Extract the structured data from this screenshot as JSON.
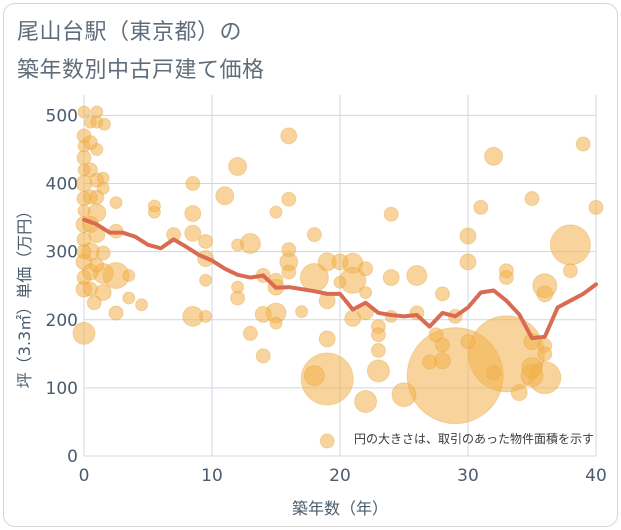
{
  "title": {
    "line1": "尾山台駅（東京都）の",
    "line2": "築年数別中古戸建て価格"
  },
  "colors": {
    "bubble": "#f2b04a",
    "bubble_stroke": "#e2a038",
    "line": "#d96b52",
    "grid": "#ccd9e3",
    "axis_text": "#4a5b6d"
  },
  "chart_data": {
    "type": "scatter",
    "title": "尾山台駅（東京都）の築年数別中古戸建て価格",
    "xlabel": "築年数（年）",
    "ylabel": "坪（3.3㎡）単価（万円）",
    "xlim": [
      0,
      40
    ],
    "ylim": [
      0,
      530
    ],
    "xticks": [
      0,
      10,
      20,
      30,
      40
    ],
    "yticks": [
      0,
      100,
      200,
      300,
      400,
      500
    ],
    "grid": true,
    "annotation": "円の大きさは、取引のあった物件面積を示す",
    "bubbles": [
      {
        "x": 0,
        "y": 505,
        "r": 6
      },
      {
        "x": 0,
        "y": 470,
        "r": 7
      },
      {
        "x": 0,
        "y": 455,
        "r": 6
      },
      {
        "x": 0,
        "y": 438,
        "r": 7
      },
      {
        "x": 0,
        "y": 420,
        "r": 6
      },
      {
        "x": 0,
        "y": 400,
        "r": 8
      },
      {
        "x": 0,
        "y": 378,
        "r": 7
      },
      {
        "x": 0,
        "y": 360,
        "r": 6
      },
      {
        "x": 0,
        "y": 340,
        "r": 8
      },
      {
        "x": 0,
        "y": 318,
        "r": 7
      },
      {
        "x": 0,
        "y": 300,
        "r": 7
      },
      {
        "x": 0,
        "y": 285,
        "r": 8
      },
      {
        "x": 0,
        "y": 262,
        "r": 7
      },
      {
        "x": 0,
        "y": 245,
        "r": 8
      },
      {
        "x": 0,
        "y": 180,
        "r": 11
      },
      {
        "x": 0.5,
        "y": 490,
        "r": 6
      },
      {
        "x": 0.5,
        "y": 460,
        "r": 7
      },
      {
        "x": 0.5,
        "y": 420,
        "r": 7
      },
      {
        "x": 0.5,
        "y": 380,
        "r": 7
      },
      {
        "x": 0.5,
        "y": 340,
        "r": 8
      },
      {
        "x": 0.5,
        "y": 300,
        "r": 9
      },
      {
        "x": 0.5,
        "y": 270,
        "r": 8
      },
      {
        "x": 0.5,
        "y": 245,
        "r": 7
      },
      {
        "x": 0.8,
        "y": 225,
        "r": 7
      },
      {
        "x": 1,
        "y": 505,
        "r": 6
      },
      {
        "x": 1,
        "y": 490,
        "r": 6
      },
      {
        "x": 1,
        "y": 450,
        "r": 6
      },
      {
        "x": 1,
        "y": 405,
        "r": 7
      },
      {
        "x": 1,
        "y": 380,
        "r": 7
      },
      {
        "x": 1,
        "y": 357,
        "r": 9
      },
      {
        "x": 1,
        "y": 325,
        "r": 8
      },
      {
        "x": 1,
        "y": 280,
        "r": 7
      },
      {
        "x": 1.5,
        "y": 268,
        "r": 10
      },
      {
        "x": 1.5,
        "y": 240,
        "r": 8
      },
      {
        "x": 1.5,
        "y": 298,
        "r": 7
      },
      {
        "x": 1.6,
        "y": 487,
        "r": 6
      },
      {
        "x": 1.5,
        "y": 408,
        "r": 6
      },
      {
        "x": 1.5,
        "y": 393,
        "r": 6
      },
      {
        "x": 2.5,
        "y": 372,
        "r": 6
      },
      {
        "x": 2.5,
        "y": 330,
        "r": 7
      },
      {
        "x": 2.5,
        "y": 265,
        "r": 13
      },
      {
        "x": 2.5,
        "y": 210,
        "r": 7
      },
      {
        "x": 3.5,
        "y": 232,
        "r": 6
      },
      {
        "x": 3.5,
        "y": 265,
        "r": 6
      },
      {
        "x": 4.5,
        "y": 222,
        "r": 6
      },
      {
        "x": 5.5,
        "y": 367,
        "r": 6
      },
      {
        "x": 5.5,
        "y": 358,
        "r": 6
      },
      {
        "x": 7,
        "y": 325,
        "r": 7
      },
      {
        "x": 8.5,
        "y": 400,
        "r": 7
      },
      {
        "x": 8.5,
        "y": 356,
        "r": 8
      },
      {
        "x": 8.5,
        "y": 327,
        "r": 8
      },
      {
        "x": 8.5,
        "y": 205,
        "r": 10
      },
      {
        "x": 9.5,
        "y": 315,
        "r": 7
      },
      {
        "x": 9.5,
        "y": 290,
        "r": 8
      },
      {
        "x": 9.5,
        "y": 258,
        "r": 6
      },
      {
        "x": 9.5,
        "y": 205,
        "r": 6
      },
      {
        "x": 11,
        "y": 382,
        "r": 9
      },
      {
        "x": 12,
        "y": 425,
        "r": 9
      },
      {
        "x": 12,
        "y": 310,
        "r": 6
      },
      {
        "x": 12,
        "y": 248,
        "r": 6
      },
      {
        "x": 12,
        "y": 232,
        "r": 7
      },
      {
        "x": 13,
        "y": 312,
        "r": 10
      },
      {
        "x": 13,
        "y": 180,
        "r": 7
      },
      {
        "x": 14,
        "y": 265,
        "r": 7
      },
      {
        "x": 14,
        "y": 208,
        "r": 8
      },
      {
        "x": 14,
        "y": 147,
        "r": 7
      },
      {
        "x": 15,
        "y": 358,
        "r": 6
      },
      {
        "x": 15,
        "y": 258,
        "r": 7
      },
      {
        "x": 15,
        "y": 248,
        "r": 8
      },
      {
        "x": 15,
        "y": 210,
        "r": 10
      },
      {
        "x": 15,
        "y": 195,
        "r": 6
      },
      {
        "x": 16,
        "y": 470,
        "r": 8
      },
      {
        "x": 16,
        "y": 377,
        "r": 7
      },
      {
        "x": 16,
        "y": 303,
        "r": 7
      },
      {
        "x": 16,
        "y": 285,
        "r": 9
      },
      {
        "x": 16,
        "y": 270,
        "r": 7
      },
      {
        "x": 17,
        "y": 212,
        "r": 6
      },
      {
        "x": 18,
        "y": 325,
        "r": 7
      },
      {
        "x": 18,
        "y": 262,
        "r": 14
      },
      {
        "x": 18,
        "y": 118,
        "r": 10
      },
      {
        "x": 19,
        "y": 285,
        "r": 9
      },
      {
        "x": 19,
        "y": 228,
        "r": 8
      },
      {
        "x": 19,
        "y": 172,
        "r": 8
      },
      {
        "x": 19,
        "y": 113,
        "r": 26
      },
      {
        "x": 19,
        "y": 22,
        "r": 7
      },
      {
        "x": 20,
        "y": 285,
        "r": 8
      },
      {
        "x": 20,
        "y": 255,
        "r": 6
      },
      {
        "x": 21,
        "y": 283,
        "r": 10
      },
      {
        "x": 21,
        "y": 258,
        "r": 13
      },
      {
        "x": 21,
        "y": 202,
        "r": 8
      },
      {
        "x": 22,
        "y": 275,
        "r": 7
      },
      {
        "x": 22,
        "y": 240,
        "r": 6
      },
      {
        "x": 22,
        "y": 212,
        "r": 8
      },
      {
        "x": 22,
        "y": 80,
        "r": 11
      },
      {
        "x": 23,
        "y": 190,
        "r": 7
      },
      {
        "x": 23,
        "y": 178,
        "r": 7
      },
      {
        "x": 23,
        "y": 155,
        "r": 7
      },
      {
        "x": 23,
        "y": 125,
        "r": 11
      },
      {
        "x": 24,
        "y": 355,
        "r": 7
      },
      {
        "x": 24,
        "y": 262,
        "r": 8
      },
      {
        "x": 24,
        "y": 205,
        "r": 6
      },
      {
        "x": 25,
        "y": 90,
        "r": 12
      },
      {
        "x": 26,
        "y": 265,
        "r": 10
      },
      {
        "x": 26,
        "y": 210,
        "r": 7
      },
      {
        "x": 27,
        "y": 138,
        "r": 7
      },
      {
        "x": 27.5,
        "y": 178,
        "r": 7
      },
      {
        "x": 28,
        "y": 238,
        "r": 7
      },
      {
        "x": 28,
        "y": 163,
        "r": 7
      },
      {
        "x": 28,
        "y": 140,
        "r": 8
      },
      {
        "x": 29,
        "y": 118,
        "r": 48
      },
      {
        "x": 29,
        "y": 205,
        "r": 7
      },
      {
        "x": 30,
        "y": 323,
        "r": 8
      },
      {
        "x": 30,
        "y": 285,
        "r": 8
      },
      {
        "x": 30,
        "y": 168,
        "r": 7
      },
      {
        "x": 31,
        "y": 365,
        "r": 7
      },
      {
        "x": 32,
        "y": 440,
        "r": 9
      },
      {
        "x": 32,
        "y": 122,
        "r": 7
      },
      {
        "x": 33,
        "y": 150,
        "r": 38
      },
      {
        "x": 33,
        "y": 272,
        "r": 7
      },
      {
        "x": 33,
        "y": 262,
        "r": 7
      },
      {
        "x": 34,
        "y": 93,
        "r": 8
      },
      {
        "x": 35,
        "y": 378,
        "r": 7
      },
      {
        "x": 35,
        "y": 168,
        "r": 8
      },
      {
        "x": 35,
        "y": 130,
        "r": 10
      },
      {
        "x": 35,
        "y": 118,
        "r": 11
      },
      {
        "x": 36,
        "y": 250,
        "r": 12
      },
      {
        "x": 36,
        "y": 238,
        "r": 8
      },
      {
        "x": 36,
        "y": 162,
        "r": 7
      },
      {
        "x": 36,
        "y": 150,
        "r": 7
      },
      {
        "x": 36,
        "y": 115,
        "r": 16
      },
      {
        "x": 38,
        "y": 310,
        "r": 20
      },
      {
        "x": 38,
        "y": 272,
        "r": 7
      },
      {
        "x": 39,
        "y": 458,
        "r": 7
      },
      {
        "x": 40,
        "y": 365,
        "r": 7
      }
    ],
    "series": [
      {
        "type": "line",
        "x": [
          0,
          1,
          2,
          3,
          4,
          5,
          6,
          7,
          8,
          9,
          10,
          11,
          12,
          13,
          14,
          15,
          16,
          17,
          18,
          19,
          20,
          21,
          22,
          23,
          24,
          25,
          26,
          27,
          28,
          29,
          30,
          31,
          32,
          33,
          34,
          35,
          36,
          37,
          38,
          39,
          40
        ],
        "y": [
          347,
          340,
          328,
          328,
          322,
          310,
          305,
          318,
          307,
          295,
          287,
          275,
          266,
          262,
          265,
          247,
          248,
          245,
          242,
          238,
          238,
          215,
          225,
          210,
          207,
          205,
          207,
          190,
          210,
          205,
          218,
          240,
          243,
          228,
          208,
          173,
          175,
          218,
          228,
          238,
          252
        ]
      }
    ]
  }
}
